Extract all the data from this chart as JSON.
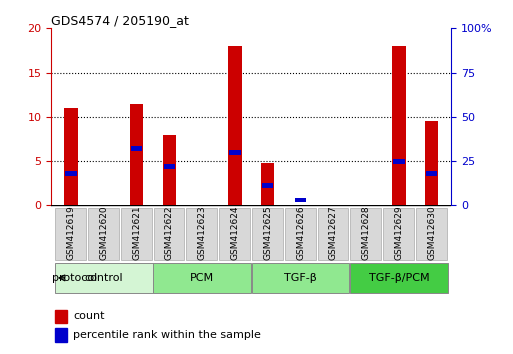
{
  "title": "GDS4574 / 205190_at",
  "samples": [
    "GSM412619",
    "GSM412620",
    "GSM412621",
    "GSM412622",
    "GSM412623",
    "GSM412624",
    "GSM412625",
    "GSM412626",
    "GSM412627",
    "GSM412628",
    "GSM412629",
    "GSM412630"
  ],
  "counts": [
    11,
    0,
    11.5,
    8,
    0,
    18,
    4.8,
    0,
    0,
    0,
    18,
    9.5
  ],
  "percentile_pct": [
    18,
    0,
    32,
    22,
    0,
    30,
    11,
    3,
    0,
    0,
    25,
    18
  ],
  "groups": [
    {
      "label": "control",
      "start": 0,
      "end": 3,
      "color": "#d4f5d4"
    },
    {
      "label": "PCM",
      "start": 3,
      "end": 6,
      "color": "#90e890"
    },
    {
      "label": "TGF-β",
      "start": 6,
      "end": 9,
      "color": "#90e890"
    },
    {
      "label": "TGF-β/PCM",
      "start": 9,
      "end": 12,
      "color": "#44cc44"
    }
  ],
  "left_ylim": [
    0,
    20
  ],
  "right_ylim": [
    0,
    100
  ],
  "left_yticks": [
    0,
    5,
    10,
    15,
    20
  ],
  "right_yticks": [
    0,
    25,
    50,
    75,
    100
  ],
  "right_yticklabels": [
    "0",
    "25",
    "50",
    "75",
    "100%"
  ],
  "bar_color": "#cc0000",
  "percentile_color": "#0000cc",
  "bar_width": 0.4,
  "grid_color": "#000000",
  "bg_color": "#ffffff",
  "plot_bg": "#ffffff",
  "left_tick_color": "#cc0000",
  "right_tick_color": "#0000cc",
  "tick_label_bg": "#d8d8d8",
  "tick_label_border": "#aaaaaa"
}
